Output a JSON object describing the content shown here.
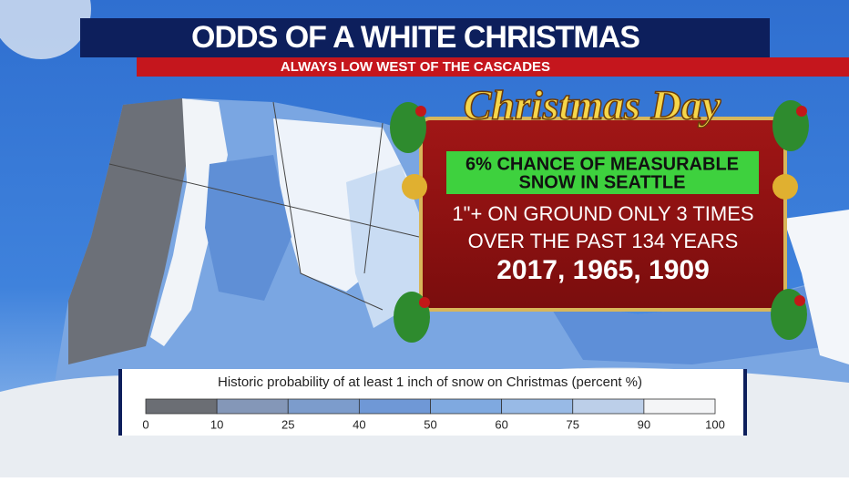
{
  "header": {
    "title": "ODDS OF A WHITE CHRISTMAS",
    "subtitle": "ALWAYS LOW WEST OF THE CASCADES"
  },
  "banner": {
    "heading": "Christmas Day",
    "highlight": [
      "6% CHANCE OF MEASURABLE",
      "SNOW IN SEATTLE"
    ],
    "lines": [
      "1\"+ ON GROUND ONLY 3 TIMES",
      "OVER THE PAST 134 YEARS"
    ],
    "years": "2017, 1965, 1909"
  },
  "legend": {
    "title": "Historic probability of at least 1 inch of snow on Christmas (percent %)",
    "ticks": [
      0,
      10,
      25,
      40,
      50,
      60,
      75,
      90,
      100
    ],
    "colors": [
      "#6b6e74",
      "#8497b8",
      "#7c9ccc",
      "#6f98d6",
      "#7fa9e0",
      "#98bae6",
      "#bccfe9",
      "#f4f5f7"
    ]
  }
}
